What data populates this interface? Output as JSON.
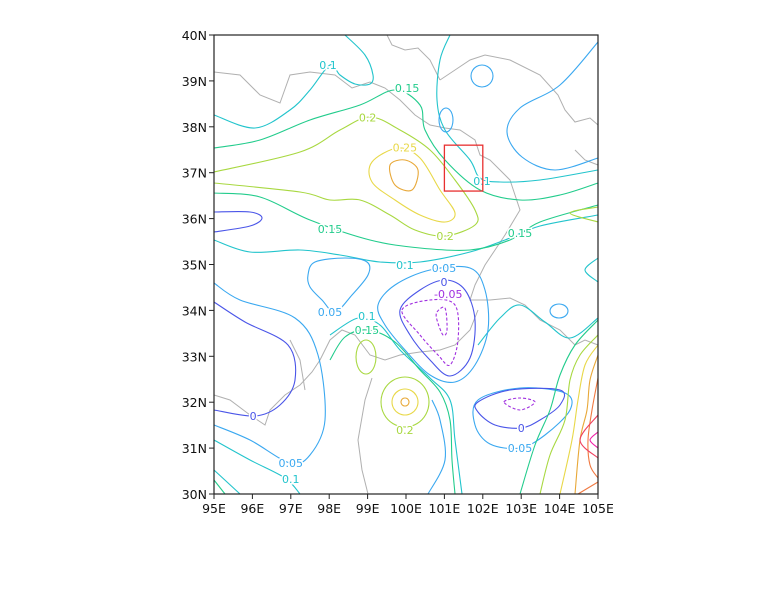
{
  "chart_data": {
    "type": "contour",
    "title": "",
    "xlabel": "",
    "ylabel": "",
    "xlim": [
      95,
      105
    ],
    "ylim": [
      30,
      40
    ],
    "xticks": [
      "95E",
      "96E",
      "97E",
      "98E",
      "99E",
      "100E",
      "101E",
      "102E",
      "103E",
      "104E",
      "105E"
    ],
    "yticks": [
      "30N",
      "31N",
      "32N",
      "33N",
      "34N",
      "35N",
      "36N",
      "37N",
      "38N",
      "39N",
      "40N"
    ],
    "grid": false,
    "basemap": "country and province borders (grey)",
    "levels": [
      -0.05,
      0,
      0.05,
      0.1,
      0.15,
      0.2,
      0.25,
      0.3,
      0.35,
      0.4,
      0.45
    ],
    "negative_line_style": "dashed",
    "level_colors": {
      "-0.05": "#a030e0",
      "0": "#4a55e8",
      "0.05": "#3aa8f0",
      "0.1": "#22c4cc",
      "0.15": "#22cc8c",
      "0.2": "#a8d840",
      "0.25": "#e8d848",
      "0.3": "#e8a838",
      "0.35": "#f07840",
      "0.4": "#f04060",
      "0.45": "#f020a8"
    },
    "contour_labels": [
      {
        "text": "0.1",
        "lon": 97.97,
        "lat": 39.35
      },
      {
        "text": "0.15",
        "lon": 100.03,
        "lat": 38.85
      },
      {
        "text": "0.2",
        "lon": 99.0,
        "lat": 38.2
      },
      {
        "text": "0.25",
        "lon": 99.97,
        "lat": 37.55
      },
      {
        "text": "0.1",
        "lon": 101.98,
        "lat": 36.82
      },
      {
        "text": "0.15",
        "lon": 98.02,
        "lat": 35.77
      },
      {
        "text": "0.2",
        "lon": 101.02,
        "lat": 35.62
      },
      {
        "text": "0.15",
        "lon": 102.97,
        "lat": 35.69
      },
      {
        "text": "0.1",
        "lon": 99.97,
        "lat": 34.99
      },
      {
        "text": "0.05",
        "lon": 100.99,
        "lat": 34.92
      },
      {
        "text": "0",
        "lon": 100.99,
        "lat": 34.62
      },
      {
        "text": "-0.05",
        "lon": 101.1,
        "lat": 34.36
      },
      {
        "text": "0.05",
        "lon": 98.02,
        "lat": 33.97
      },
      {
        "text": "0.1",
        "lon": 98.98,
        "lat": 33.88
      },
      {
        "text": "0.15",
        "lon": 98.98,
        "lat": 33.57
      },
      {
        "text": "0",
        "lon": 96.02,
        "lat": 31.7
      },
      {
        "text": "0.2",
        "lon": 99.97,
        "lat": 31.39
      },
      {
        "text": "0",
        "lon": 103.0,
        "lat": 31.44
      },
      {
        "text": "0.05",
        "lon": 102.97,
        "lat": 31.0
      },
      {
        "text": "0.05",
        "lon": 97.0,
        "lat": 30.68
      },
      {
        "text": "0.1",
        "lon": 97.0,
        "lat": 30.33
      }
    ],
    "highlight_box": {
      "lon": [
        101,
        102
      ],
      "lat": [
        36.6,
        37.6
      ],
      "color": "#e83030"
    }
  }
}
